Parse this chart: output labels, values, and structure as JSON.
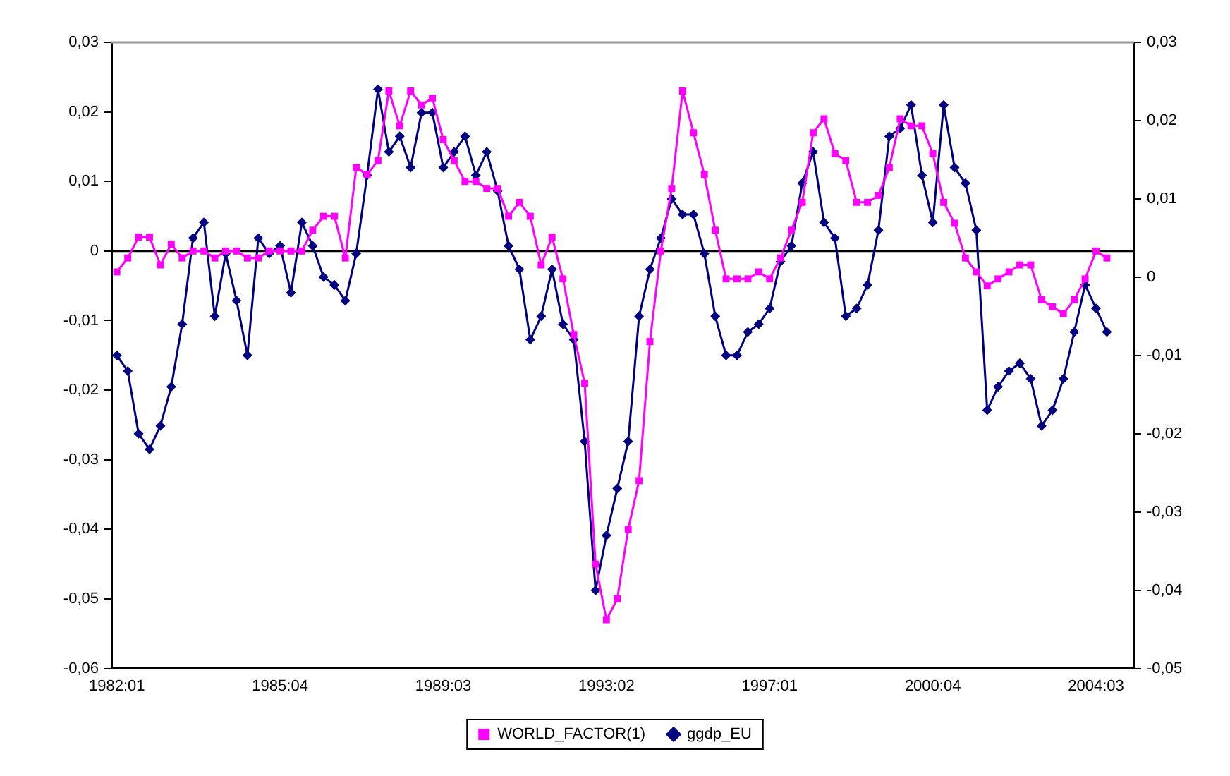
{
  "chart_data": {
    "type": "line",
    "categories": [
      "1982:01",
      null,
      null,
      null,
      null,
      null,
      null,
      null,
      null,
      null,
      null,
      null,
      null,
      null,
      null,
      "1985:04",
      null,
      null,
      null,
      null,
      null,
      null,
      null,
      null,
      null,
      null,
      null,
      null,
      null,
      null,
      "1989:03",
      null,
      null,
      null,
      null,
      null,
      null,
      null,
      null,
      null,
      null,
      null,
      null,
      null,
      null,
      "1993:02",
      null,
      null,
      null,
      null,
      null,
      null,
      null,
      null,
      null,
      null,
      null,
      null,
      null,
      null,
      "1997:01",
      null,
      null,
      null,
      null,
      null,
      null,
      null,
      null,
      null,
      null,
      null,
      null,
      null,
      null,
      "2000:04",
      null,
      null,
      null,
      null,
      null,
      null,
      null,
      null,
      null,
      null,
      null,
      null,
      null,
      null,
      "2004:03",
      null,
      null,
      null
    ],
    "series": [
      {
        "name": "WORLD_FACTOR(1)",
        "color": "#ff00ff",
        "marker": "square",
        "values": [
          -0.003,
          -0.001,
          0.002,
          0.002,
          -0.002,
          0.001,
          -0.001,
          0,
          0,
          -0.001,
          0,
          0,
          -0.001,
          -0.001,
          0,
          0,
          0,
          0,
          0.003,
          0.005,
          0.005,
          -0.001,
          0.012,
          0.011,
          0.013,
          0.023,
          0.018,
          0.023,
          0.021,
          0.022,
          0.016,
          0.013,
          0.01,
          0.01,
          0.009,
          0.009,
          0.005,
          0.007,
          0.005,
          -0.002,
          0.002,
          -0.004,
          -0.012,
          -0.019,
          -0.045,
          -0.053,
          -0.05,
          -0.04,
          -0.033,
          -0.013,
          0,
          0.009,
          0.023,
          0.017,
          0.011,
          0.003,
          -0.004,
          -0.004,
          -0.004,
          -0.003,
          -0.004,
          -0.001,
          0.003,
          0.007,
          0.017,
          0.019,
          0.014,
          0.013,
          0.007,
          0.007,
          0.008,
          0.012,
          0.019,
          0.018,
          0.018,
          0.014,
          0.007,
          0.004,
          -0.001,
          -0.003,
          -0.005,
          -0.004,
          -0.003,
          -0.002,
          -0.002,
          -0.007,
          -0.008,
          -0.009,
          -0.007,
          -0.004,
          0,
          -0.001,
          null,
          null
        ]
      },
      {
        "name": "ggdp_EU",
        "color": "#000080",
        "marker": "diamond",
        "axis": "y2",
        "values": [
          -0.01,
          -0.012,
          -0.02,
          -0.022,
          -0.019,
          -0.014,
          -0.006,
          0.005,
          0.007,
          -0.005,
          0.003,
          -0.003,
          -0.01,
          0.005,
          0.003,
          0.004,
          -0.002,
          0.007,
          0.004,
          0.0,
          -0.001,
          -0.003,
          0.003,
          0.013,
          0.024,
          0.016,
          0.018,
          0.014,
          0.021,
          0.021,
          0.014,
          0.016,
          0.018,
          0.013,
          0.016,
          0.011,
          0.004,
          0.001,
          -0.008,
          -0.005,
          0.001,
          -0.006,
          -0.008,
          -0.021,
          -0.04,
          -0.033,
          -0.027,
          -0.021,
          -0.005,
          0.001,
          0.005,
          0.01,
          0.008,
          0.008,
          0.003,
          -0.005,
          -0.01,
          -0.01,
          -0.007,
          -0.006,
          -0.004,
          0.002,
          0.004,
          0.012,
          0.016,
          0.007,
          0.005,
          -0.005,
          -0.004,
          -0.001,
          0.006,
          0.018,
          0.019,
          0.022,
          0.013,
          0.007,
          0.022,
          0.014,
          0.012,
          0.006,
          -0.017,
          -0.014,
          -0.012,
          -0.011,
          -0.013,
          -0.019,
          -0.017,
          -0.013,
          -0.007,
          -0.001,
          -0.004,
          -0.007,
          null,
          null
        ]
      }
    ],
    "ylim": [
      -0.06,
      0.03
    ],
    "yticks": [
      {
        "value": -0.06,
        "label": "-0,06"
      },
      {
        "value": -0.05,
        "label": "-0,05"
      },
      {
        "value": -0.04,
        "label": "-0,04"
      },
      {
        "value": -0.03,
        "label": "-0,03"
      },
      {
        "value": -0.02,
        "label": "-0,02"
      },
      {
        "value": -0.01,
        "label": "-0,01"
      },
      0,
      {
        "value": 0.01,
        "label": "0,01"
      },
      {
        "value": 0.02,
        "label": "0,02"
      },
      {
        "value": 0.03,
        "label": "0,03"
      }
    ],
    "y2lim": [
      -0.05,
      0.03
    ],
    "y2ticks": [
      {
        "value": -0.05,
        "label": "-0,05"
      },
      {
        "value": -0.04,
        "label": "-0,04"
      },
      {
        "value": -0.03,
        "label": "-0,03"
      },
      {
        "value": -0.02,
        "label": "-0,02"
      },
      {
        "value": -0.01,
        "label": "-0,01"
      },
      0,
      {
        "value": 0.01,
        "label": "0,01"
      },
      {
        "value": 0.02,
        "label": "0,02"
      },
      {
        "value": 0.03,
        "label": "0,03"
      }
    ],
    "ref_lines": [
      {
        "axis": "y",
        "value": 0,
        "color": "#000000"
      }
    ],
    "grid": false,
    "legend": "bottom",
    "line_style": "solid"
  }
}
